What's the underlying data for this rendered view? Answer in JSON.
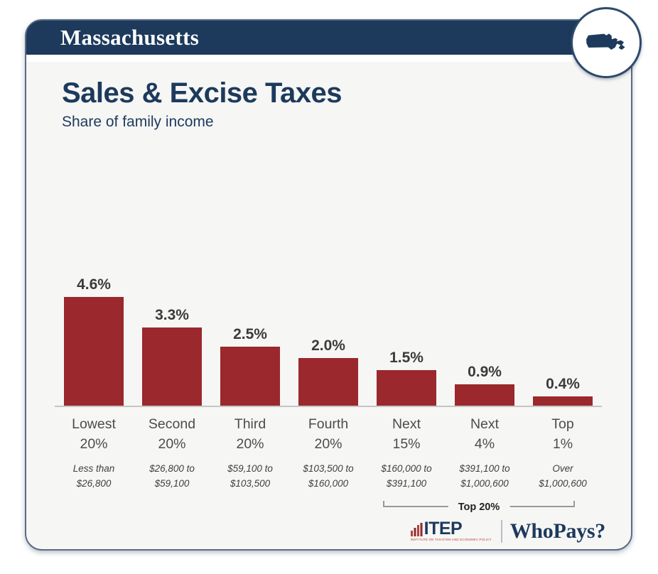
{
  "header": {
    "state_name": "Massachusetts"
  },
  "title": "Sales & Excise Taxes",
  "subtitle": "Share of family income",
  "chart_data": {
    "type": "bar",
    "title": "Sales & Excise Taxes",
    "subtitle": "Share of family income",
    "ylabel": "Share of family income (%)",
    "ylim": [
      0,
      5
    ],
    "grid": false,
    "legend": "none",
    "bar_color": "#9a282c",
    "categories": [
      "Lowest 20%",
      "Second 20%",
      "Third 20%",
      "Fourth 20%",
      "Next 15%",
      "Next 4%",
      "Top 1%"
    ],
    "category_lines": [
      [
        "Lowest",
        "20%"
      ],
      [
        "Second",
        "20%"
      ],
      [
        "Third",
        "20%"
      ],
      [
        "Fourth",
        "20%"
      ],
      [
        "Next",
        "15%"
      ],
      [
        "Next",
        "4%"
      ],
      [
        "Top",
        "1%"
      ]
    ],
    "values": [
      4.6,
      3.3,
      2.5,
      2.0,
      1.5,
      0.9,
      0.4
    ],
    "value_labels": [
      "4.6%",
      "3.3%",
      "2.5%",
      "2.0%",
      "1.5%",
      "0.9%",
      "0.4%"
    ],
    "income_ranges": [
      "Less than $26,800",
      "$26,800 to $59,100",
      "$59,100 to $103,500",
      "$103,500 to $160,000",
      "$160,000 to $391,100",
      "$391,100 to $1,000,600",
      "Over $1,000,600"
    ],
    "income_range_lines": [
      [
        "Less than",
        "$26,800"
      ],
      [
        "$26,800 to",
        "$59,100"
      ],
      [
        "$59,100 to",
        "$103,500"
      ],
      [
        "$103,500 to",
        "$160,000"
      ],
      [
        "$160,000 to",
        "$391,100"
      ],
      [
        "$391,100 to",
        "$1,000,600"
      ],
      [
        "Over",
        "$1,000,600"
      ]
    ],
    "annotation": {
      "label": "Top 20%",
      "spans": [
        "Next 15%",
        "Next 4%",
        "Top 1%"
      ]
    }
  },
  "footer": {
    "itep_label": "ITEP",
    "itep_tagline": "INSTITUTE ON TAXATION AND ECONOMIC POLICY",
    "whopays_label": "WhoPays?"
  },
  "colors": {
    "navy": "#1d3a5c",
    "bar_red": "#9a282c",
    "card_bg": "#f6f6f5",
    "axis_line": "#c5c5c5",
    "bracket_line": "#999999",
    "value_label": "#3b3b3b",
    "itep_red": "#c0392b"
  }
}
